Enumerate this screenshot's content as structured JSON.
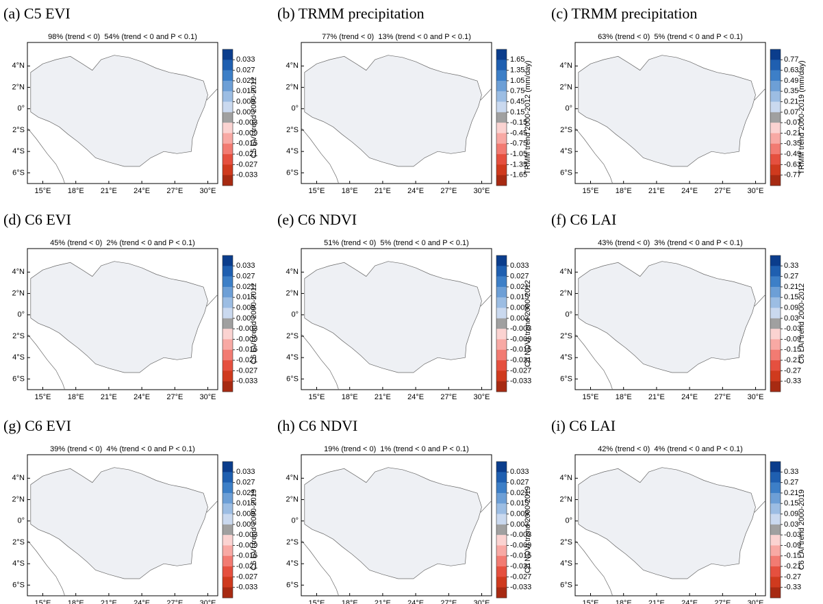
{
  "panels": [
    {
      "label": "(a) C5 EVI",
      "subtitle": "98% (trend < 0)  54% (trend < 0 and P < 0.1)",
      "colorbar_label": "C5 EVI trend 2000-2012",
      "colorbar_ticks": [
        0.033,
        0.027,
        0.021,
        0.015,
        0.009,
        0.003,
        -0.003,
        -0.009,
        -0.015,
        -0.021,
        -0.027,
        -0.033
      ]
    },
    {
      "label": "(b) TRMM precipitation",
      "subtitle": "77% (trend < 0)  13% (trend < 0 and P < 0.1)",
      "colorbar_label": "TRMM trend 2000-2012 (mm/day)",
      "colorbar_ticks": [
        1.65,
        1.35,
        1.05,
        0.75,
        0.45,
        0.15,
        -0.15,
        -0.45,
        -0.75,
        -1.05,
        -1.35,
        -1.65
      ]
    },
    {
      "label": "(c) TRMM precipitation",
      "subtitle": "63% (trend < 0)  5% (trend < 0 and P < 0.1)",
      "colorbar_label": "TRMM trend 2000-2019 (mm/day)",
      "colorbar_ticks": [
        0.77,
        0.63,
        0.49,
        0.35,
        0.21,
        0.07,
        -0.07,
        -0.21,
        -0.35,
        -0.49,
        -0.63,
        -0.77
      ]
    },
    {
      "label": "(d) C6 EVI",
      "subtitle": "45% (trend < 0)  2% (trend < 0 and P < 0.1)",
      "colorbar_label": "C6 EVI trend 2000-2012",
      "colorbar_ticks": [
        0.033,
        0.027,
        0.021,
        0.015,
        0.009,
        0.003,
        -0.003,
        -0.009,
        -0.015,
        -0.021,
        -0.027,
        -0.033
      ]
    },
    {
      "label": "(e) C6 NDVI",
      "subtitle": "51% (trend < 0)  5% (trend < 0 and P < 0.1)",
      "colorbar_label": "C6 NDVI trend 2000-2012",
      "colorbar_ticks": [
        0.033,
        0.027,
        0.021,
        0.015,
        0.009,
        0.003,
        -0.003,
        -0.009,
        -0.015,
        -0.021,
        -0.027,
        -0.033
      ]
    },
    {
      "label": "(f) C6 LAI",
      "subtitle": "43% (trend < 0)  3% (trend < 0 and P < 0.1)",
      "colorbar_label": "C6 LAI trend 2000-2012",
      "colorbar_ticks": [
        0.33,
        0.27,
        0.21,
        0.15,
        0.09,
        0.03,
        -0.03,
        -0.09,
        -0.15,
        -0.21,
        -0.27,
        -0.33
      ]
    },
    {
      "label": "(g) C6 EVI",
      "subtitle": "39% (trend < 0)  4% (trend < 0 and P < 0.1)",
      "colorbar_label": "C6 EVI trend 2000-2019",
      "colorbar_ticks": [
        0.033,
        0.027,
        0.021,
        0.015,
        0.009,
        0.003,
        -0.003,
        -0.009,
        -0.015,
        -0.021,
        -0.027,
        -0.033
      ]
    },
    {
      "label": "(h) C6 NDVI",
      "subtitle": "19% (trend < 0)  1% (trend < 0 and P < 0.1)",
      "colorbar_label": "C6 NDVI trend 2000-2019",
      "colorbar_ticks": [
        0.033,
        0.027,
        0.021,
        0.015,
        0.009,
        0.003,
        -0.003,
        -0.009,
        -0.015,
        -0.021,
        -0.027,
        -0.033
      ]
    },
    {
      "label": "(i) C6 LAI",
      "subtitle": "42% (trend < 0)  4% (trend < 0 and P < 0.1)",
      "colorbar_label": "C6 LAI trend 2000-2019",
      "colorbar_ticks": [
        0.33,
        0.27,
        0.21,
        0.15,
        0.09,
        0.03,
        -0.03,
        -0.09,
        -0.15,
        -0.21,
        -0.27,
        -0.33
      ]
    }
  ],
  "xlim": [
    13.6,
    30.9
  ],
  "ylim": [
    -7,
    6.2
  ],
  "xticks": [
    {
      "value": 15,
      "label": "15°E"
    },
    {
      "value": 18,
      "label": "18°E"
    },
    {
      "value": 21,
      "label": "21°E"
    },
    {
      "value": 24,
      "label": "24°E"
    },
    {
      "value": 27,
      "label": "27°E"
    },
    {
      "value": 30,
      "label": "30°E"
    }
  ],
  "yticks": [
    {
      "value": 4,
      "label": "4°N"
    },
    {
      "value": 2,
      "label": "2°N"
    },
    {
      "value": 0,
      "label": "0°"
    },
    {
      "value": -2,
      "label": "2°S"
    },
    {
      "value": -4,
      "label": "4°S"
    },
    {
      "value": -6,
      "label": "6°S"
    }
  ],
  "colorbar_colors": [
    "#0b3d8c",
    "#1f5fb0",
    "#3d7fc7",
    "#6d9fd6",
    "#9cbde3",
    "#cad9ef",
    "#a0a0a0",
    "#fbd3d1",
    "#f8a9a4",
    "#f27b72",
    "#e5503f",
    "#cf3a1e",
    "#a72a12"
  ]
}
